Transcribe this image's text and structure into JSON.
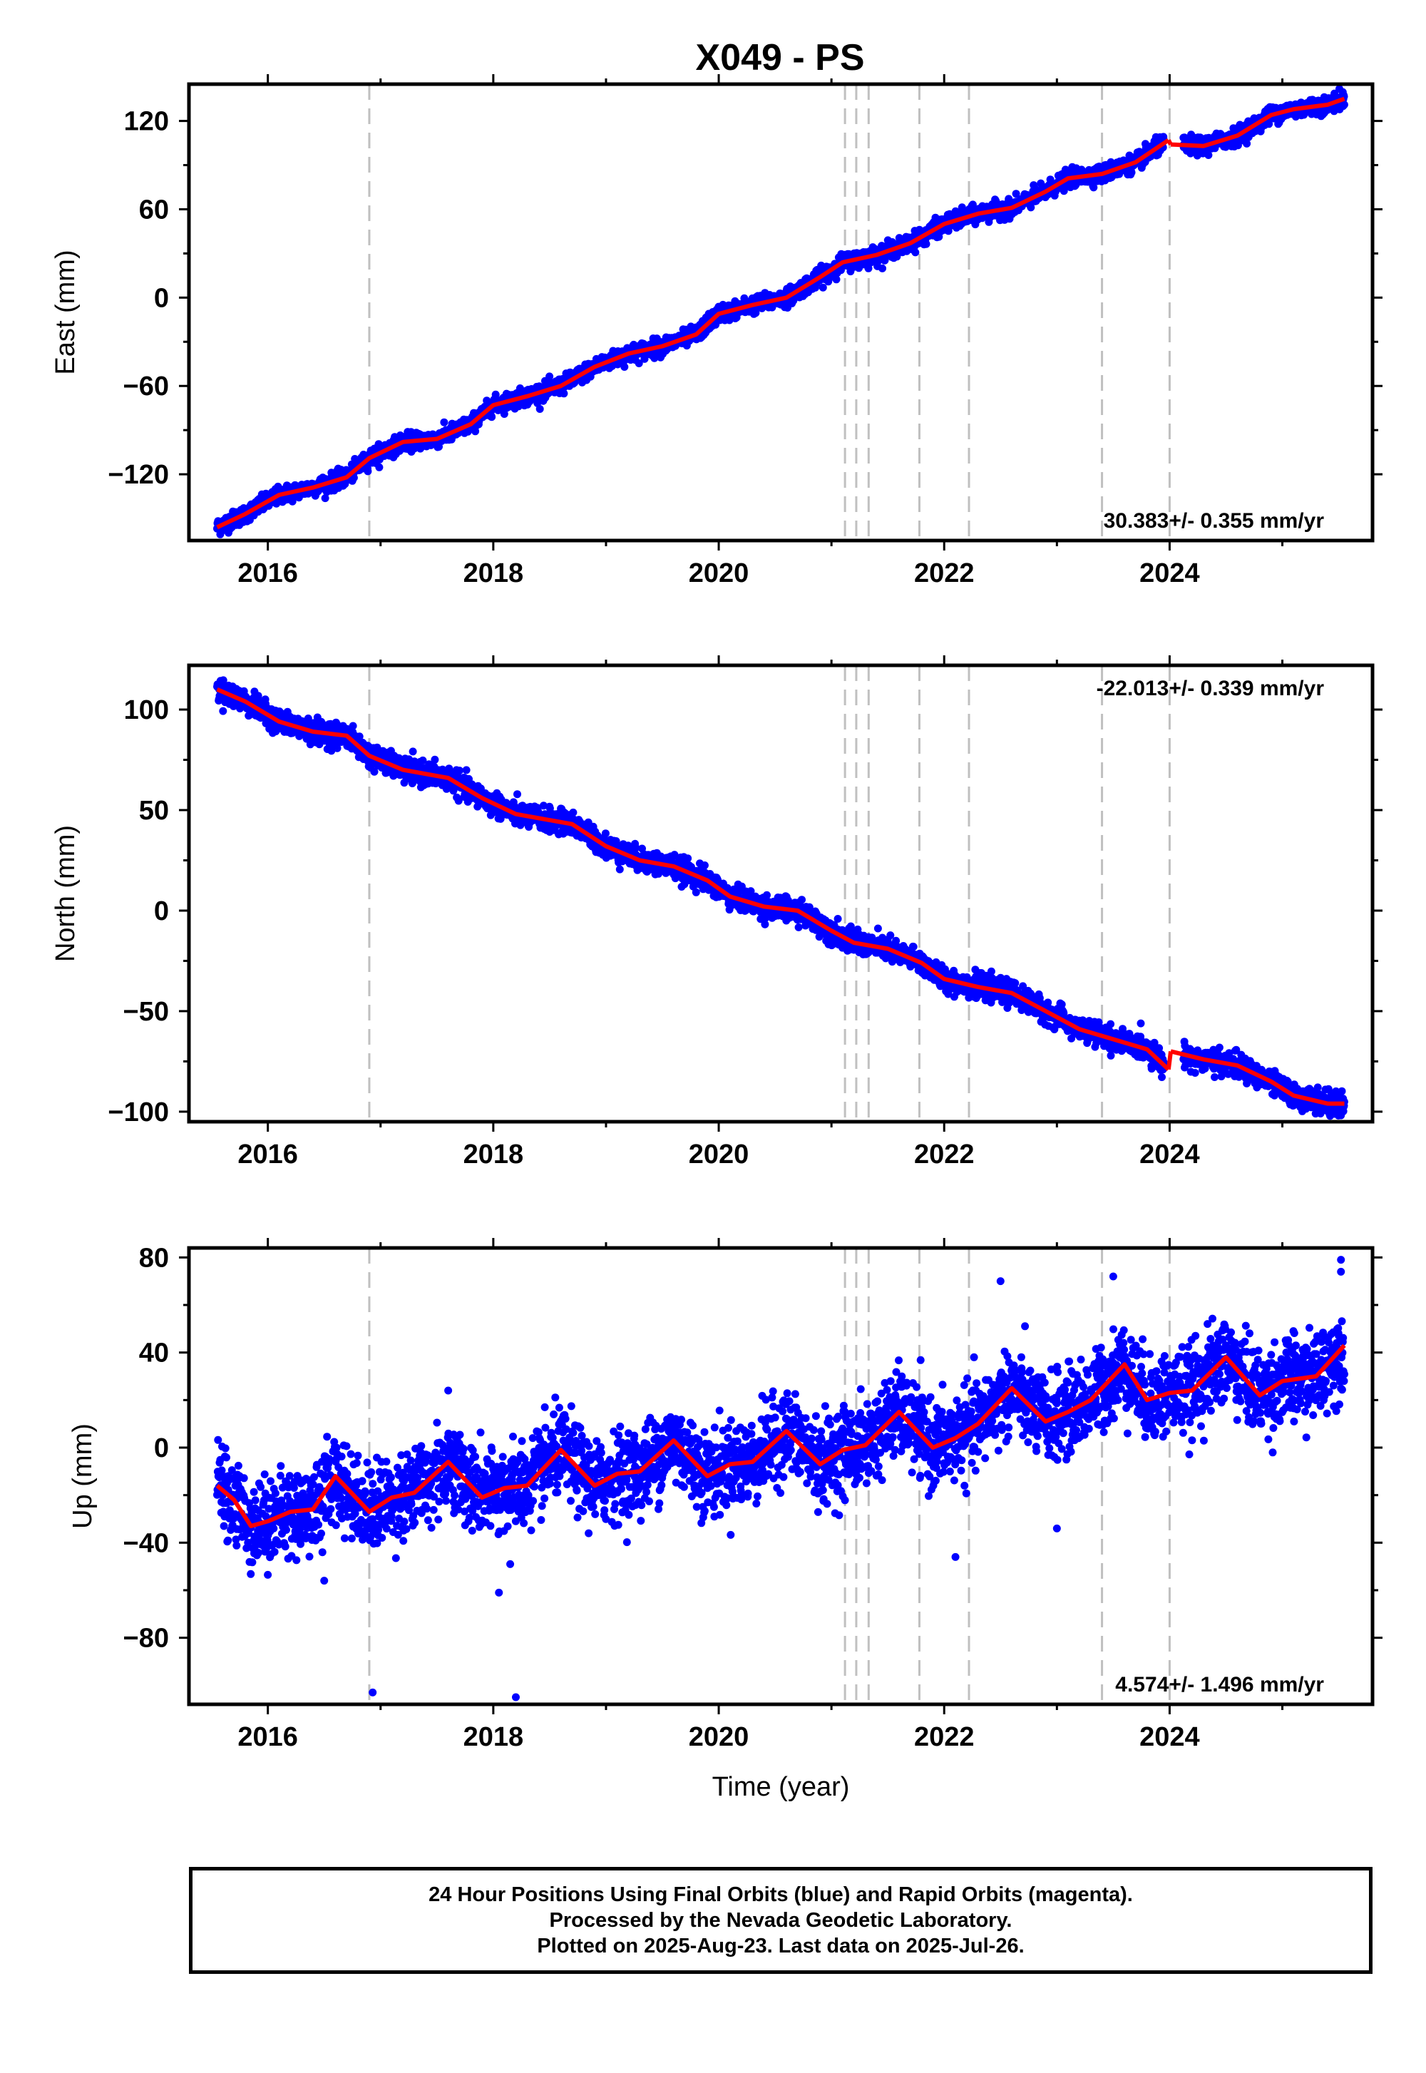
{
  "figure": {
    "title": "X049 - PS",
    "caption_lines": [
      "24 Hour Positions Using Final Orbits (blue) and Rapid Orbits (magenta).",
      "Processed by the Nevada Geodetic Laboratory.",
      "Plotted on 2025-Aug-23. Last data on 2025-Jul-26."
    ],
    "colors": {
      "data_points": "#0000ff",
      "model_line": "#ff0000",
      "event_lines": "#c0c0c0",
      "frame": "#000000"
    }
  },
  "chart_data": [
    {
      "type": "scatter",
      "name": "east",
      "ylabel": "East (mm)",
      "xlabel": "",
      "xlim": [
        2015.3,
        2025.8
      ],
      "ylim": [
        -165,
        145
      ],
      "xticks": [
        "2016",
        "2018",
        "2020",
        "2022",
        "2024"
      ],
      "yticks": [
        "120",
        "60",
        "0",
        "−60",
        "−120"
      ],
      "ytick_values": [
        120,
        60,
        0,
        -60,
        -120
      ],
      "rate": "30.383+/- 0.355 mm/yr",
      "rate_position": "bottom-right",
      "event_lines": [
        2016.9,
        2021.12,
        2021.22,
        2021.33,
        2021.78,
        2022.22,
        2023.4,
        2024.0
      ],
      "series": [
        {
          "kind": "model",
          "x": [
            2015.55,
            2015.8,
            2016.1,
            2016.4,
            2016.7,
            2016.9,
            2017.2,
            2017.5,
            2017.8,
            2018.0,
            2018.3,
            2018.6,
            2018.9,
            2019.2,
            2019.5,
            2019.8,
            2020.0,
            2020.3,
            2020.6,
            2020.9,
            2021.1,
            2021.4,
            2021.7,
            2022.0,
            2022.3,
            2022.6,
            2022.9,
            2023.1,
            2023.4,
            2023.7,
            2023.99
          ],
          "y": [
            -156,
            -147,
            -134,
            -129,
            -122,
            -109,
            -98,
            -96,
            -86,
            -73,
            -67,
            -60,
            -47,
            -38,
            -33,
            -25,
            -11,
            -5,
            0,
            14,
            24,
            29,
            37,
            50,
            57,
            61,
            72,
            81,
            84,
            92,
            107
          ]
        },
        {
          "kind": "model",
          "x": [
            2024.01,
            2024.3,
            2024.6,
            2024.9,
            2025.1,
            2025.4,
            2025.55
          ],
          "y": [
            104,
            103,
            110,
            124,
            128,
            131,
            135
          ]
        }
      ],
      "scatter_noise_mm": 3.5
    },
    {
      "type": "scatter",
      "name": "north",
      "ylabel": "North (mm)",
      "xlabel": "",
      "xlim": [
        2015.3,
        2025.8
      ],
      "ylim": [
        -105,
        122
      ],
      "xticks": [
        "2016",
        "2018",
        "2020",
        "2022",
        "2024"
      ],
      "yticks": [
        "100",
        "50",
        "0",
        "−50",
        "−100"
      ],
      "ytick_values": [
        100,
        50,
        0,
        -50,
        -100
      ],
      "rate": "-22.013+/- 0.339 mm/yr",
      "rate_position": "top-right",
      "event_lines": [
        2016.9,
        2021.12,
        2021.22,
        2021.33,
        2021.78,
        2022.22,
        2023.4,
        2024.0
      ],
      "series": [
        {
          "kind": "model",
          "x": [
            2015.55,
            2015.8,
            2016.1,
            2016.4,
            2016.7,
            2016.9,
            2017.2,
            2017.6,
            2017.9,
            2018.2,
            2018.5,
            2018.7,
            2019.0,
            2019.3,
            2019.6,
            2019.9,
            2020.1,
            2020.4,
            2020.7,
            2021.0,
            2021.2,
            2021.5,
            2021.8,
            2022.0,
            2022.3,
            2022.6,
            2022.9,
            2023.2,
            2023.5,
            2023.8,
            2023.99
          ],
          "y": [
            110,
            104,
            94,
            89,
            87,
            77,
            70,
            66,
            56,
            48,
            45,
            43,
            32,
            25,
            22,
            15,
            7,
            2,
            0,
            -10,
            -16,
            -19,
            -26,
            -34,
            -38,
            -41,
            -50,
            -59,
            -64,
            -69,
            -79
          ]
        },
        {
          "kind": "model",
          "x": [
            2024.01,
            2024.3,
            2024.6,
            2024.9,
            2025.1,
            2025.4,
            2025.55
          ],
          "y": [
            -70,
            -74,
            -77,
            -85,
            -92,
            -96,
            -96
          ]
        }
      ],
      "scatter_noise_mm": 3.5
    },
    {
      "type": "scatter",
      "name": "up",
      "ylabel": "Up (mm)",
      "xlabel": "Time (year)",
      "xlim": [
        2015.3,
        2025.8
      ],
      "ylim": [
        -108,
        84
      ],
      "xticks": [
        "2016",
        "2018",
        "2020",
        "2022",
        "2024"
      ],
      "yticks": [
        "80",
        "40",
        "0",
        "−40",
        "−80"
      ],
      "ytick_values": [
        80,
        40,
        0,
        -40,
        -80
      ],
      "rate": "4.574+/- 1.496 mm/yr",
      "rate_position": "bottom-right",
      "event_lines": [
        2016.9,
        2021.12,
        2021.22,
        2021.33,
        2021.78,
        2022.22,
        2023.4,
        2024.0
      ],
      "series": [
        {
          "kind": "model",
          "x": [
            2015.55,
            2015.7,
            2015.85,
            2016.0,
            2016.2,
            2016.4,
            2016.6,
            2016.9,
            2017.1,
            2017.3,
            2017.6,
            2017.9,
            2018.1,
            2018.3,
            2018.6,
            2018.9,
            2019.1,
            2019.3,
            2019.6,
            2019.9,
            2020.1,
            2020.3,
            2020.6,
            2020.9,
            2021.1,
            2021.3,
            2021.6,
            2021.9,
            2022.1,
            2022.3,
            2022.6,
            2022.9,
            2023.1,
            2023.3,
            2023.6,
            2023.8,
            2024.0,
            2024.2,
            2024.5,
            2024.8,
            2025.0,
            2025.3,
            2025.55
          ],
          "y": [
            -16,
            -22,
            -33,
            -31,
            -27,
            -26,
            -12,
            -27,
            -21,
            -19,
            -6,
            -21,
            -17,
            -16,
            -1,
            -16,
            -11,
            -10,
            3,
            -12,
            -7,
            -6,
            7,
            -7,
            -1,
            1,
            15,
            0,
            4,
            10,
            25,
            11,
            15,
            20,
            35,
            20,
            23,
            24,
            38,
            22,
            28,
            30,
            43
          ]
        }
      ],
      "scatter_noise_mm": 11,
      "outliers": [
        {
          "x": 2016.93,
          "y": -103
        },
        {
          "x": 2018.2,
          "y": -105
        },
        {
          "x": 2018.05,
          "y": -61
        },
        {
          "x": 2018.15,
          "y": -49
        },
        {
          "x": 2016.5,
          "y": -56
        },
        {
          "x": 2022.5,
          "y": 70
        },
        {
          "x": 2023.5,
          "y": 72
        },
        {
          "x": 2025.52,
          "y": 79
        },
        {
          "x": 2025.52,
          "y": 74
        },
        {
          "x": 2022.1,
          "y": -46
        },
        {
          "x": 2023.0,
          "y": -34
        },
        {
          "x": 2017.6,
          "y": 24
        }
      ]
    }
  ]
}
